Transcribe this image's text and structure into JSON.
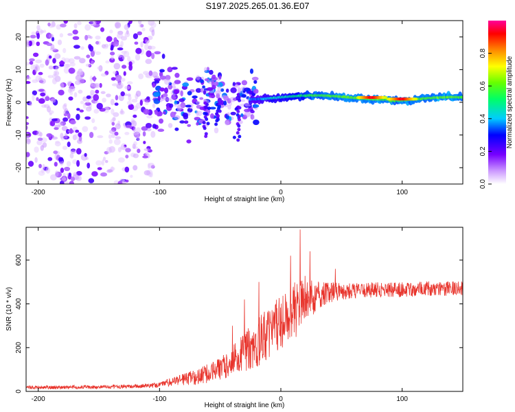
{
  "title": "S197.2025.265.01.36.E07",
  "colors": {
    "snr_line": "#e8332b",
    "background": "#ffffff",
    "axis": "#000000"
  },
  "chart_data": [
    {
      "type": "heatmap",
      "name": "spectrogram",
      "xlabel": "Height of straight line (km)",
      "ylabel": "Frequency (Hz)",
      "xlim": [
        -210,
        150
      ],
      "ylim": [
        -25,
        25
      ],
      "xticks": [
        -200,
        -100,
        0,
        100
      ],
      "yticks": [
        -20,
        -10,
        0,
        10,
        20
      ],
      "colorbar": {
        "label": "Normalized spectral amplitude",
        "range": [
          0,
          1
        ],
        "ticks": [
          0.0,
          0.2,
          0.4,
          0.6,
          0.8
        ],
        "colormap": "rainbow (white-violet-blue-cyan-green-yellow-red-magenta)"
      },
      "features": [
        {
          "label": "incoherent noise",
          "x_range": [
            -210,
            -100
          ],
          "freq_range": [
            -25,
            25
          ],
          "amplitude": 0.15
        },
        {
          "label": "emerging signal",
          "x_range": [
            -100,
            -20
          ],
          "freq_range": [
            -12,
            12
          ],
          "amplitude": 0.3
        },
        {
          "label": "carrier trace",
          "x_range": [
            -20,
            150
          ],
          "center_freq": 1.5,
          "amplitude": 0.6
        },
        {
          "label": "peak",
          "x": 75,
          "center_freq": 1.5,
          "amplitude": 0.95
        },
        {
          "label": "peak",
          "x": 100,
          "center_freq": 1.0,
          "amplitude": 0.95
        }
      ]
    },
    {
      "type": "line",
      "name": "snr",
      "xlabel": "Height of straight line (km)",
      "ylabel": "SNR (10 * v/v)",
      "xlim": [
        -210,
        150
      ],
      "ylim": [
        0,
        750
      ],
      "xticks": [
        -200,
        -100,
        0,
        100
      ],
      "yticks": [
        0,
        200,
        400,
        600
      ],
      "envelope": {
        "x": [
          -210,
          -150,
          -110,
          -100,
          -90,
          -70,
          -50,
          -40,
          -30,
          -20,
          -10,
          0,
          10,
          20,
          30,
          40,
          50,
          60,
          80,
          100,
          120,
          150
        ],
        "mean": [
          18,
          20,
          25,
          30,
          45,
          65,
          100,
          140,
          180,
          220,
          270,
          310,
          360,
          420,
          440,
          450,
          455,
          460,
          465,
          465,
          470,
          470
        ],
        "noise": [
          8,
          8,
          10,
          12,
          20,
          35,
          55,
          70,
          90,
          110,
          120,
          130,
          140,
          110,
          70,
          50,
          40,
          35,
          35,
          35,
          35,
          35
        ]
      },
      "spikes": [
        {
          "x": -40,
          "y": 300
        },
        {
          "x": -30,
          "y": 420
        },
        {
          "x": -18,
          "y": 500
        },
        {
          "x": 8,
          "y": 620
        },
        {
          "x": 16,
          "y": 740
        },
        {
          "x": 24,
          "y": 640
        },
        {
          "x": 45,
          "y": 560
        }
      ]
    }
  ]
}
